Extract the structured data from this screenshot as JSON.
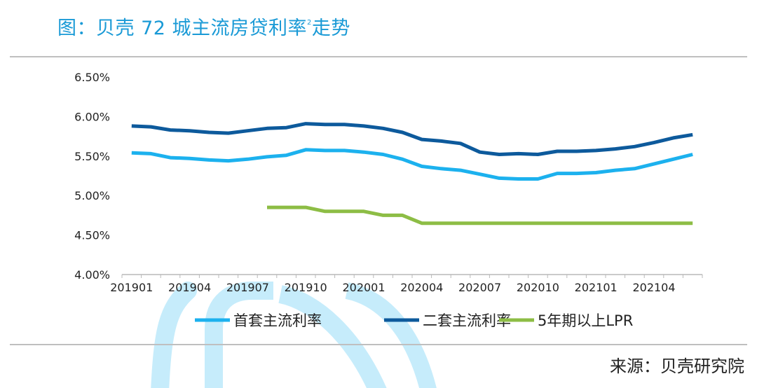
{
  "title": "图：贝壳 72 城主流房贷利率",
  "title_sup": "2",
  "title_suffix": "走势",
  "source": "来源：贝壳研究院",
  "colors": {
    "title": "#1a9ad6",
    "first_home": "#1cb1ee",
    "second_home": "#0d5a9c",
    "lpr": "#8dbd45",
    "watermark": "#c6ecfb"
  },
  "chart_data": {
    "type": "line",
    "x": [
      "201901",
      "201902",
      "201903",
      "201904",
      "201905",
      "201906",
      "201907",
      "201908",
      "201909",
      "201910",
      "201911",
      "201912",
      "202001",
      "202002",
      "202003",
      "202004",
      "202005",
      "202006",
      "202007",
      "202008",
      "202009",
      "202010",
      "202011",
      "202012",
      "202101",
      "202102",
      "202103",
      "202104",
      "202105",
      "202106"
    ],
    "xticks": [
      "201901",
      "201904",
      "201907",
      "201910",
      "202001",
      "202004",
      "202007",
      "202010",
      "202101",
      "202104"
    ],
    "yticks": [
      "4.00%",
      "4.50%",
      "5.00%",
      "5.50%",
      "6.00%",
      "6.50%"
    ],
    "ylim": [
      4.0,
      6.5
    ],
    "grid": false,
    "legend_position": "bottom",
    "series": [
      {
        "name": "首套主流利率",
        "color": "#1cb1ee",
        "values": [
          5.54,
          5.53,
          5.48,
          5.47,
          5.45,
          5.44,
          5.46,
          5.49,
          5.51,
          5.58,
          5.57,
          5.57,
          5.55,
          5.52,
          5.46,
          5.37,
          5.34,
          5.32,
          5.27,
          5.22,
          5.21,
          5.21,
          5.28,
          5.28,
          5.29,
          5.32,
          5.34,
          5.4,
          5.46,
          5.52
        ]
      },
      {
        "name": "二套主流利率",
        "color": "#0d5a9c",
        "values": [
          5.88,
          5.87,
          5.83,
          5.82,
          5.8,
          5.79,
          5.82,
          5.85,
          5.86,
          5.91,
          5.9,
          5.9,
          5.88,
          5.85,
          5.8,
          5.71,
          5.69,
          5.66,
          5.55,
          5.52,
          5.53,
          5.52,
          5.56,
          5.56,
          5.57,
          5.59,
          5.62,
          5.67,
          5.73,
          5.77
        ]
      },
      {
        "name": "5年期以上LPR",
        "color": "#8dbd45",
        "values": [
          null,
          null,
          null,
          null,
          null,
          null,
          null,
          4.85,
          4.85,
          4.85,
          4.8,
          4.8,
          4.8,
          4.75,
          4.75,
          4.65,
          4.65,
          4.65,
          4.65,
          4.65,
          4.65,
          4.65,
          4.65,
          4.65,
          4.65,
          4.65,
          4.65,
          4.65,
          4.65,
          4.65
        ]
      }
    ]
  }
}
